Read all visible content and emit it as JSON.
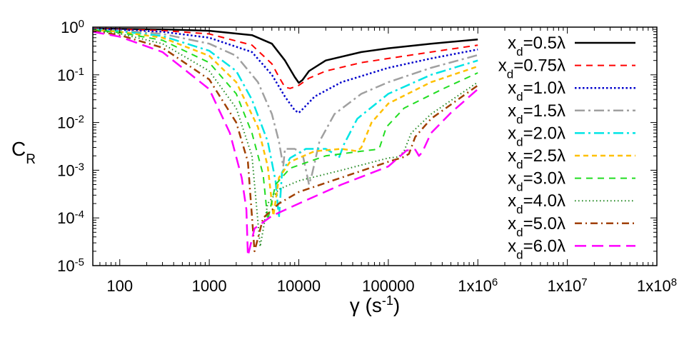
{
  "chart_data": {
    "type": "line",
    "title": "",
    "xlabel": "γ (s⁻¹)",
    "ylabel": "C_R",
    "x_scale": "log",
    "y_scale": "log",
    "xlim": [
      50,
      100000000
    ],
    "ylim": [
      1e-05,
      1
    ],
    "grid": false,
    "legend_placement": "top-right",
    "x_ticks": [
      {
        "value": 100,
        "label": "100"
      },
      {
        "value": 1000,
        "label": "1000"
      },
      {
        "value": 10000,
        "label": "10000"
      },
      {
        "value": 100000,
        "label": "100000"
      },
      {
        "value": 1000000,
        "label": "1x10",
        "exp": "6"
      },
      {
        "value": 10000000,
        "label": "1x10",
        "exp": "7"
      },
      {
        "value": 100000000,
        "label": "1x10",
        "exp": "8"
      }
    ],
    "y_ticks": [
      {
        "value": 1,
        "label": "10",
        "exp": "0"
      },
      {
        "value": 0.1,
        "label": "10",
        "exp": "-1"
      },
      {
        "value": 0.01,
        "label": "10",
        "exp": "-2"
      },
      {
        "value": 0.001,
        "label": "10",
        "exp": "-3"
      },
      {
        "value": 0.0001,
        "label": "10",
        "exp": "-4"
      },
      {
        "value": 1e-05,
        "label": "10",
        "exp": "-5"
      }
    ],
    "series": [
      {
        "name": "x_d=0.5λ",
        "color": "#000000",
        "dash": "",
        "width": 2.5,
        "points": [
          [
            50,
            0.93
          ],
          [
            100,
            0.92
          ],
          [
            300,
            0.9
          ],
          [
            1000,
            0.84
          ],
          [
            3000,
            0.68
          ],
          [
            5000,
            0.45
          ],
          [
            7000,
            0.2
          ],
          [
            9000,
            0.09
          ],
          [
            10000,
            0.068
          ],
          [
            11000,
            0.078
          ],
          [
            13000,
            0.12
          ],
          [
            20000,
            0.2
          ],
          [
            50000,
            0.3
          ],
          [
            100000,
            0.36
          ],
          [
            300000,
            0.45
          ],
          [
            1000000,
            0.55
          ]
        ]
      },
      {
        "name": "x_d=0.75λ",
        "color": "#ff0000",
        "dash": "9,7",
        "width": 2,
        "points": [
          [
            50,
            0.93
          ],
          [
            100,
            0.9
          ],
          [
            300,
            0.85
          ],
          [
            1000,
            0.72
          ],
          [
            3000,
            0.42
          ],
          [
            5000,
            0.17
          ],
          [
            6000,
            0.09
          ],
          [
            7000,
            0.055
          ],
          [
            8000,
            0.052
          ],
          [
            10000,
            0.06
          ],
          [
            13000,
            0.085
          ],
          [
            20000,
            0.12
          ],
          [
            50000,
            0.18
          ],
          [
            100000,
            0.22
          ],
          [
            300000,
            0.3
          ],
          [
            1000000,
            0.42
          ]
        ]
      },
      {
        "name": "x_d=1.0λ",
        "color": "#0000cc",
        "dash": "2.5,3",
        "width": 2.5,
        "points": [
          [
            50,
            0.92
          ],
          [
            100,
            0.88
          ],
          [
            300,
            0.8
          ],
          [
            1000,
            0.6
          ],
          [
            3000,
            0.3
          ],
          [
            5000,
            0.1
          ],
          [
            7000,
            0.035
          ],
          [
            9000,
            0.018
          ],
          [
            10000,
            0.016
          ],
          [
            11000,
            0.019
          ],
          [
            15000,
            0.035
          ],
          [
            30000,
            0.07
          ],
          [
            100000,
            0.14
          ],
          [
            300000,
            0.22
          ],
          [
            1000000,
            0.34
          ]
        ]
      },
      {
        "name": "x_d=1.5λ",
        "color": "#a0a0a0",
        "dash": "14,5,3,5",
        "width": 2.5,
        "points": [
          [
            50,
            0.9
          ],
          [
            100,
            0.85
          ],
          [
            300,
            0.72
          ],
          [
            1000,
            0.45
          ],
          [
            2000,
            0.25
          ],
          [
            3500,
            0.07
          ],
          [
            5000,
            0.015
          ],
          [
            6000,
            0.004
          ],
          [
            6700,
            0.0012
          ],
          [
            7000,
            0.0028
          ],
          [
            9000,
            0.0028
          ],
          [
            11000,
            0.0022
          ],
          [
            13000,
            0.0005
          ],
          [
            14000,
            0.0008
          ],
          [
            17000,
            0.004
          ],
          [
            25000,
            0.015
          ],
          [
            50000,
            0.04
          ],
          [
            100000,
            0.07
          ],
          [
            300000,
            0.14
          ],
          [
            1000000,
            0.26
          ]
        ]
      },
      {
        "name": "x_d=2.0λ",
        "color": "#00e5e5",
        "dash": "14,5,3,5",
        "width": 2.5,
        "points": [
          [
            50,
            0.89
          ],
          [
            100,
            0.82
          ],
          [
            300,
            0.65
          ],
          [
            1000,
            0.32
          ],
          [
            2000,
            0.12
          ],
          [
            3000,
            0.03
          ],
          [
            4500,
            0.004
          ],
          [
            5500,
            0.0006
          ],
          [
            6000,
            0.0001
          ],
          [
            6500,
            0.0009
          ],
          [
            8000,
            0.0018
          ],
          [
            12000,
            0.0028
          ],
          [
            20000,
            0.0028
          ],
          [
            25000,
            0.0022
          ],
          [
            28000,
            0.0018
          ],
          [
            32000,
            0.0035
          ],
          [
            45000,
            0.012
          ],
          [
            100000,
            0.04
          ],
          [
            300000,
            0.1
          ],
          [
            1000000,
            0.2
          ]
        ]
      },
      {
        "name": "x_d=2.5λ",
        "color": "#ffc000",
        "dash": "7,5",
        "width": 2.5,
        "points": [
          [
            50,
            0.88
          ],
          [
            100,
            0.8
          ],
          [
            300,
            0.6
          ],
          [
            1000,
            0.25
          ],
          [
            2000,
            0.07
          ],
          [
            3500,
            0.008
          ],
          [
            4500,
            0.0012
          ],
          [
            5200,
            0.00011
          ],
          [
            6000,
            0.0007
          ],
          [
            8000,
            0.0015
          ],
          [
            15000,
            0.0025
          ],
          [
            30000,
            0.0028
          ],
          [
            45000,
            0.0025
          ],
          [
            50000,
            0.003
          ],
          [
            65000,
            0.01
          ],
          [
            100000,
            0.025
          ],
          [
            300000,
            0.07
          ],
          [
            1000000,
            0.15
          ]
        ]
      },
      {
        "name": "x_d=3.0λ",
        "color": "#22dd22",
        "dash": "9,7",
        "width": 2,
        "points": [
          [
            50,
            0.87
          ],
          [
            100,
            0.77
          ],
          [
            300,
            0.53
          ],
          [
            1000,
            0.18
          ],
          [
            2000,
            0.04
          ],
          [
            3000,
            0.006
          ],
          [
            4000,
            0.0008
          ],
          [
            4500,
            9e-05
          ],
          [
            5500,
            0.0005
          ],
          [
            8000,
            0.0011
          ],
          [
            20000,
            0.002
          ],
          [
            50000,
            0.0025
          ],
          [
            70000,
            0.0027
          ],
          [
            80000,
            0.003
          ],
          [
            95000,
            0.008
          ],
          [
            150000,
            0.02
          ],
          [
            400000,
            0.05
          ],
          [
            1000000,
            0.11
          ]
        ]
      },
      {
        "name": "x_d=4.0λ",
        "color": "#228822",
        "dash": "1.5,3.5",
        "width": 2,
        "points": [
          [
            50,
            0.85
          ],
          [
            100,
            0.73
          ],
          [
            300,
            0.45
          ],
          [
            1000,
            0.12
          ],
          [
            2000,
            0.02
          ],
          [
            3000,
            0.002
          ],
          [
            3700,
            2.5e-05
          ],
          [
            4500,
            0.0002
          ],
          [
            6000,
            0.0004
          ],
          [
            10000,
            0.0006
          ],
          [
            30000,
            0.001
          ],
          [
            100000,
            0.0018
          ],
          [
            130000,
            0.0019
          ],
          [
            150000,
            0.0025
          ],
          [
            180000,
            0.006
          ],
          [
            300000,
            0.015
          ],
          [
            1000000,
            0.07
          ]
        ]
      },
      {
        "name": "x_d=5.0λ",
        "color": "#a04000",
        "dash": "10,5,2,5",
        "width": 2.5,
        "points": [
          [
            50,
            0.83
          ],
          [
            100,
            0.68
          ],
          [
            300,
            0.37
          ],
          [
            1000,
            0.08
          ],
          [
            2000,
            0.01
          ],
          [
            2700,
            0.0015
          ],
          [
            3200,
            2e-05
          ],
          [
            4000,
            0.0001
          ],
          [
            6000,
            0.0002
          ],
          [
            10000,
            0.00035
          ],
          [
            30000,
            0.0007
          ],
          [
            100000,
            0.0015
          ],
          [
            150000,
            0.0019
          ],
          [
            170000,
            0.0022
          ],
          [
            200000,
            0.005
          ],
          [
            300000,
            0.012
          ],
          [
            1000000,
            0.06
          ]
        ]
      },
      {
        "name": "x_d=6.0λ",
        "color": "#ff00ff",
        "dash": "16,8",
        "width": 2.5,
        "points": [
          [
            50,
            0.8
          ],
          [
            100,
            0.63
          ],
          [
            300,
            0.3
          ],
          [
            1000,
            0.05
          ],
          [
            1700,
            0.006
          ],
          [
            2300,
            0.0007
          ],
          [
            2600,
            0.00015
          ],
          [
            2700,
            1.6e-05
          ],
          [
            3200,
            6e-05
          ],
          [
            5000,
            0.00011
          ],
          [
            10000,
            0.0002
          ],
          [
            30000,
            0.0005
          ],
          [
            100000,
            0.0012
          ],
          [
            160000,
            0.0026
          ],
          [
            200000,
            0.0027
          ],
          [
            220000,
            0.002
          ],
          [
            240000,
            0.0024
          ],
          [
            300000,
            0.006
          ],
          [
            500000,
            0.016
          ],
          [
            1000000,
            0.05
          ]
        ]
      }
    ]
  }
}
